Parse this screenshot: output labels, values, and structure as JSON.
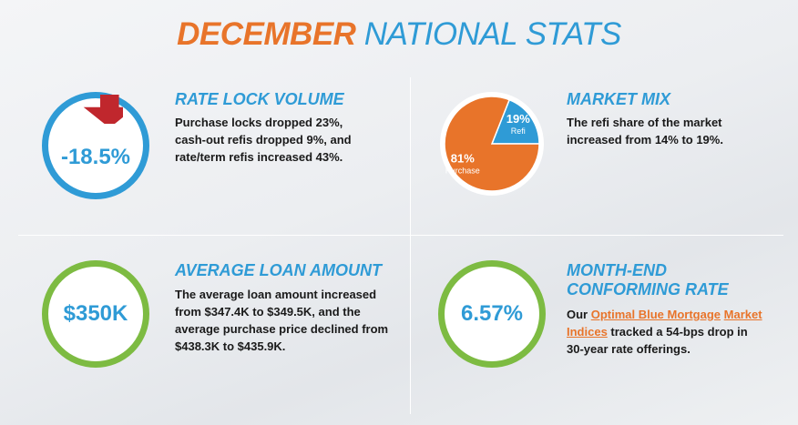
{
  "title": {
    "part1": "DECEMBER",
    "part2": "NATIONAL STATS"
  },
  "rate_lock": {
    "heading": "RATE LOCK VOLUME",
    "value": "-18.5%",
    "body": "Purchase locks dropped 23%, cash-out refis dropped 9%, and rate/term refis increased 43%."
  },
  "market_mix": {
    "heading": "MARKET MIX",
    "body": "The refi share of the market increased from 14% to 19%.",
    "chart_data": {
      "type": "pie",
      "slices": [
        {
          "label": "Refi",
          "value": 19,
          "text": "19%",
          "color": "#2f9bd6"
        },
        {
          "label": "Purchase",
          "value": 81,
          "text": "81%",
          "color": "#e8742a"
        }
      ]
    }
  },
  "loan": {
    "heading": "AVERAGE LOAN AMOUNT",
    "value": "$350K",
    "body": "The average loan amount increased from $347.4K to $349.5K, and the average purchase price declined from $438.3K to $435.9K."
  },
  "rate": {
    "heading_line1": "MONTH-END",
    "heading_line2": "CONFORMING RATE",
    "value": "6.57%",
    "body_pre": "Our ",
    "link1": "Optimal Blue Mortgage",
    "link2": "Market Indices",
    "body_post": " tracked a 54-bps drop in 30-year rate offerings."
  },
  "colors": {
    "orange": "#e8742a",
    "blue": "#2f9bd6",
    "green": "#7dbb42",
    "red": "#c0272d"
  }
}
